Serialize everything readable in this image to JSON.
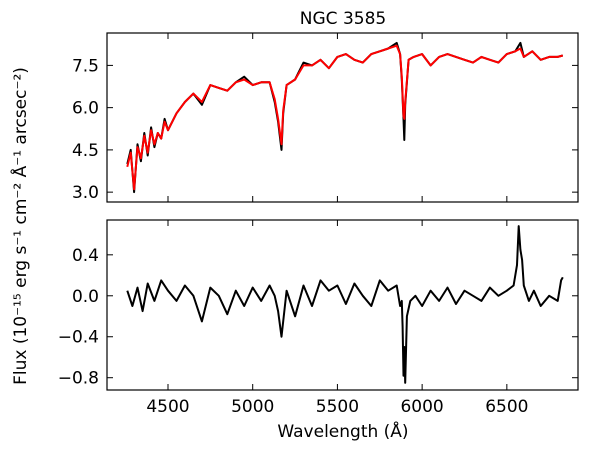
{
  "chart_data": [
    {
      "type": "line",
      "title": "NGC 3585",
      "xlabel": "",
      "ylabel": "",
      "xlim": [
        4140,
        6920
      ],
      "ylim": [
        2.65,
        8.65
      ],
      "xticks": [
        4500,
        5000,
        5500,
        6000,
        6500
      ],
      "yticks": [
        3.0,
        4.5,
        6.0,
        7.5
      ],
      "ytick_labels": [
        "3.0",
        "4.5",
        "6.0",
        "7.5"
      ],
      "grid": false,
      "series": [
        {
          "color": "#000000",
          "x": [
            4260,
            4280,
            4300,
            4320,
            4340,
            4360,
            4380,
            4400,
            4420,
            4440,
            4460,
            4480,
            4500,
            4550,
            4600,
            4650,
            4700,
            4750,
            4800,
            4850,
            4900,
            4950,
            5000,
            5050,
            5100,
            5130,
            5150,
            5170,
            5180,
            5200,
            5250,
            5300,
            5350,
            5400,
            5450,
            5500,
            5550,
            5600,
            5650,
            5700,
            5750,
            5800,
            5850,
            5870,
            5880,
            5890,
            5895,
            5900,
            5920,
            5950,
            6000,
            6050,
            6100,
            6150,
            6200,
            6250,
            6300,
            6350,
            6400,
            6450,
            6500,
            6550,
            6580,
            6600,
            6650,
            6700,
            6750,
            6800,
            6830
          ],
          "y": [
            4.0,
            4.5,
            3.0,
            4.7,
            4.1,
            5.1,
            4.3,
            5.3,
            4.6,
            5.1,
            4.9,
            5.6,
            5.2,
            5.8,
            6.2,
            6.5,
            6.1,
            6.8,
            6.7,
            6.6,
            6.9,
            7.1,
            6.8,
            6.9,
            6.9,
            6.2,
            5.5,
            4.5,
            5.8,
            6.8,
            7.0,
            7.6,
            7.5,
            7.7,
            7.4,
            7.8,
            7.9,
            7.7,
            7.6,
            7.9,
            8.0,
            8.1,
            8.3,
            7.9,
            7.0,
            5.6,
            4.85,
            6.1,
            7.7,
            7.8,
            7.9,
            7.5,
            7.8,
            7.9,
            7.8,
            7.7,
            7.6,
            7.8,
            7.7,
            7.6,
            7.9,
            8.0,
            8.3,
            7.8,
            8.0,
            7.7,
            7.8,
            7.8,
            7.85
          ]
        },
        {
          "color": "#ff0000",
          "x": [
            4260,
            4280,
            4300,
            4320,
            4340,
            4360,
            4380,
            4400,
            4420,
            4440,
            4460,
            4480,
            4500,
            4550,
            4600,
            4650,
            4700,
            4750,
            4800,
            4850,
            4900,
            4950,
            5000,
            5050,
            5100,
            5130,
            5150,
            5170,
            5180,
            5200,
            5250,
            5300,
            5350,
            5400,
            5450,
            5500,
            5550,
            5600,
            5650,
            5700,
            5750,
            5800,
            5850,
            5870,
            5880,
            5890,
            5895,
            5900,
            5920,
            5950,
            6000,
            6050,
            6100,
            6150,
            6200,
            6250,
            6300,
            6350,
            6400,
            6450,
            6500,
            6550,
            6580,
            6600,
            6650,
            6700,
            6750,
            6800,
            6830
          ],
          "y": [
            3.9,
            4.4,
            3.1,
            4.6,
            4.2,
            5.0,
            4.4,
            5.2,
            4.7,
            5.1,
            4.9,
            5.5,
            5.2,
            5.8,
            6.2,
            6.5,
            6.2,
            6.8,
            6.7,
            6.6,
            6.9,
            7.0,
            6.8,
            6.9,
            6.9,
            6.3,
            5.6,
            4.7,
            5.9,
            6.8,
            7.0,
            7.5,
            7.5,
            7.7,
            7.4,
            7.8,
            7.9,
            7.7,
            7.6,
            7.9,
            8.0,
            8.1,
            8.2,
            7.9,
            7.1,
            5.7,
            5.6,
            6.2,
            7.7,
            7.8,
            7.9,
            7.5,
            7.8,
            7.9,
            7.8,
            7.7,
            7.6,
            7.8,
            7.7,
            7.6,
            7.9,
            8.0,
            8.1,
            7.8,
            8.0,
            7.7,
            7.8,
            7.8,
            7.85
          ]
        }
      ]
    },
    {
      "type": "line",
      "title": "",
      "xlabel": "Wavelength (Å)",
      "ylabel": "Flux (10⁻¹⁵ erg s⁻¹ cm⁻² Å⁻¹ arcsec⁻²)",
      "xlim": [
        4140,
        6920
      ],
      "ylim": [
        -0.92,
        0.74
      ],
      "xticks": [
        4500,
        5000,
        5500,
        6000,
        6500
      ],
      "xtick_labels": [
        "4500",
        "5000",
        "5500",
        "6000",
        "6500"
      ],
      "yticks": [
        -0.8,
        -0.4,
        0.0,
        0.4
      ],
      "ytick_labels": [
        "−0.8",
        "−0.4",
        "0.0",
        "0.4"
      ],
      "grid": false,
      "series": [
        {
          "color": "#000000",
          "x": [
            4260,
            4290,
            4320,
            4350,
            4380,
            4420,
            4460,
            4500,
            4550,
            4600,
            4650,
            4700,
            4750,
            4800,
            4850,
            4900,
            4950,
            5000,
            5050,
            5100,
            5130,
            5150,
            5170,
            5200,
            5250,
            5300,
            5350,
            5400,
            5450,
            5500,
            5550,
            5600,
            5650,
            5700,
            5750,
            5800,
            5850,
            5870,
            5880,
            5885,
            5890,
            5895,
            5900,
            5910,
            5930,
            5960,
            6000,
            6050,
            6100,
            6150,
            6200,
            6250,
            6300,
            6350,
            6400,
            6450,
            6500,
            6540,
            6560,
            6570,
            6580,
            6590,
            6600,
            6630,
            6660,
            6700,
            6750,
            6800,
            6820,
            6830
          ],
          "y": [
            0.05,
            -0.1,
            0.08,
            -0.15,
            0.12,
            -0.05,
            0.15,
            0.05,
            -0.05,
            0.1,
            0.0,
            -0.25,
            0.08,
            0.0,
            -0.18,
            0.05,
            -0.1,
            0.08,
            -0.05,
            0.1,
            0.0,
            -0.15,
            -0.4,
            0.05,
            -0.2,
            0.1,
            -0.1,
            0.15,
            0.05,
            0.1,
            -0.08,
            0.12,
            0.0,
            -0.1,
            0.15,
            0.05,
            0.1,
            -0.1,
            -0.05,
            -0.3,
            -0.78,
            -0.5,
            -0.85,
            -0.2,
            -0.05,
            0.0,
            -0.1,
            0.05,
            -0.05,
            0.08,
            -0.08,
            0.05,
            0.0,
            -0.05,
            0.08,
            0.0,
            0.05,
            0.1,
            0.3,
            0.68,
            0.45,
            0.35,
            0.1,
            -0.05,
            0.05,
            -0.1,
            0.0,
            -0.05,
            0.15,
            0.18
          ]
        }
      ]
    }
  ]
}
